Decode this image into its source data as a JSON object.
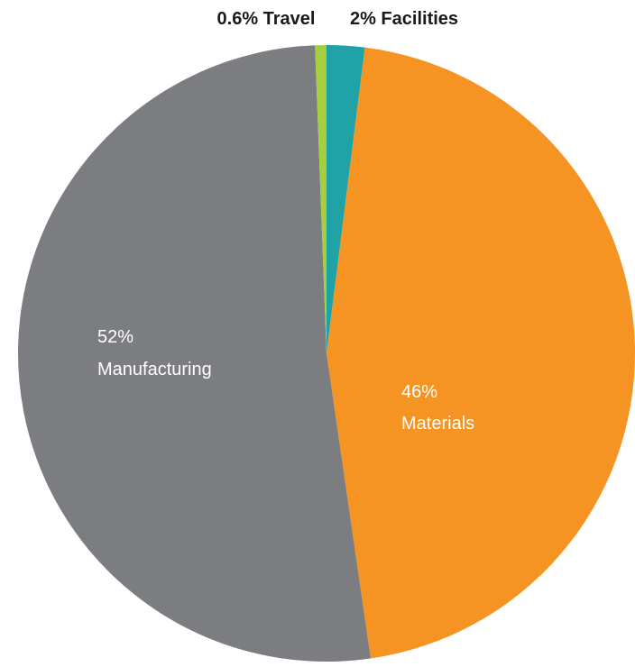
{
  "chart_data": {
    "type": "pie",
    "title": "",
    "slices": [
      {
        "name": "Facilities",
        "value": 2,
        "value_label": "2%",
        "color": "#1fa3a6",
        "label_text": "2% Facilities",
        "label_position": "outside-top"
      },
      {
        "name": "Materials",
        "value": 46,
        "value_label": "46%",
        "color": "#f59422",
        "label_text_line1": "46%",
        "label_text_line2": "Materials",
        "label_position": "inside"
      },
      {
        "name": "Manufacturing",
        "value": 52,
        "value_label": "52%",
        "color": "#7b7d80",
        "label_text_line1": "52%",
        "label_text_line2": "Manufacturing",
        "label_position": "inside"
      },
      {
        "name": "Travel",
        "value": 0.6,
        "value_label": "0.6%",
        "color": "#a6cf3f",
        "label_text": "0.6% Travel",
        "label_position": "outside-top"
      }
    ],
    "start_angle_deg": 0,
    "direction": "clockwise",
    "legend": "none"
  }
}
